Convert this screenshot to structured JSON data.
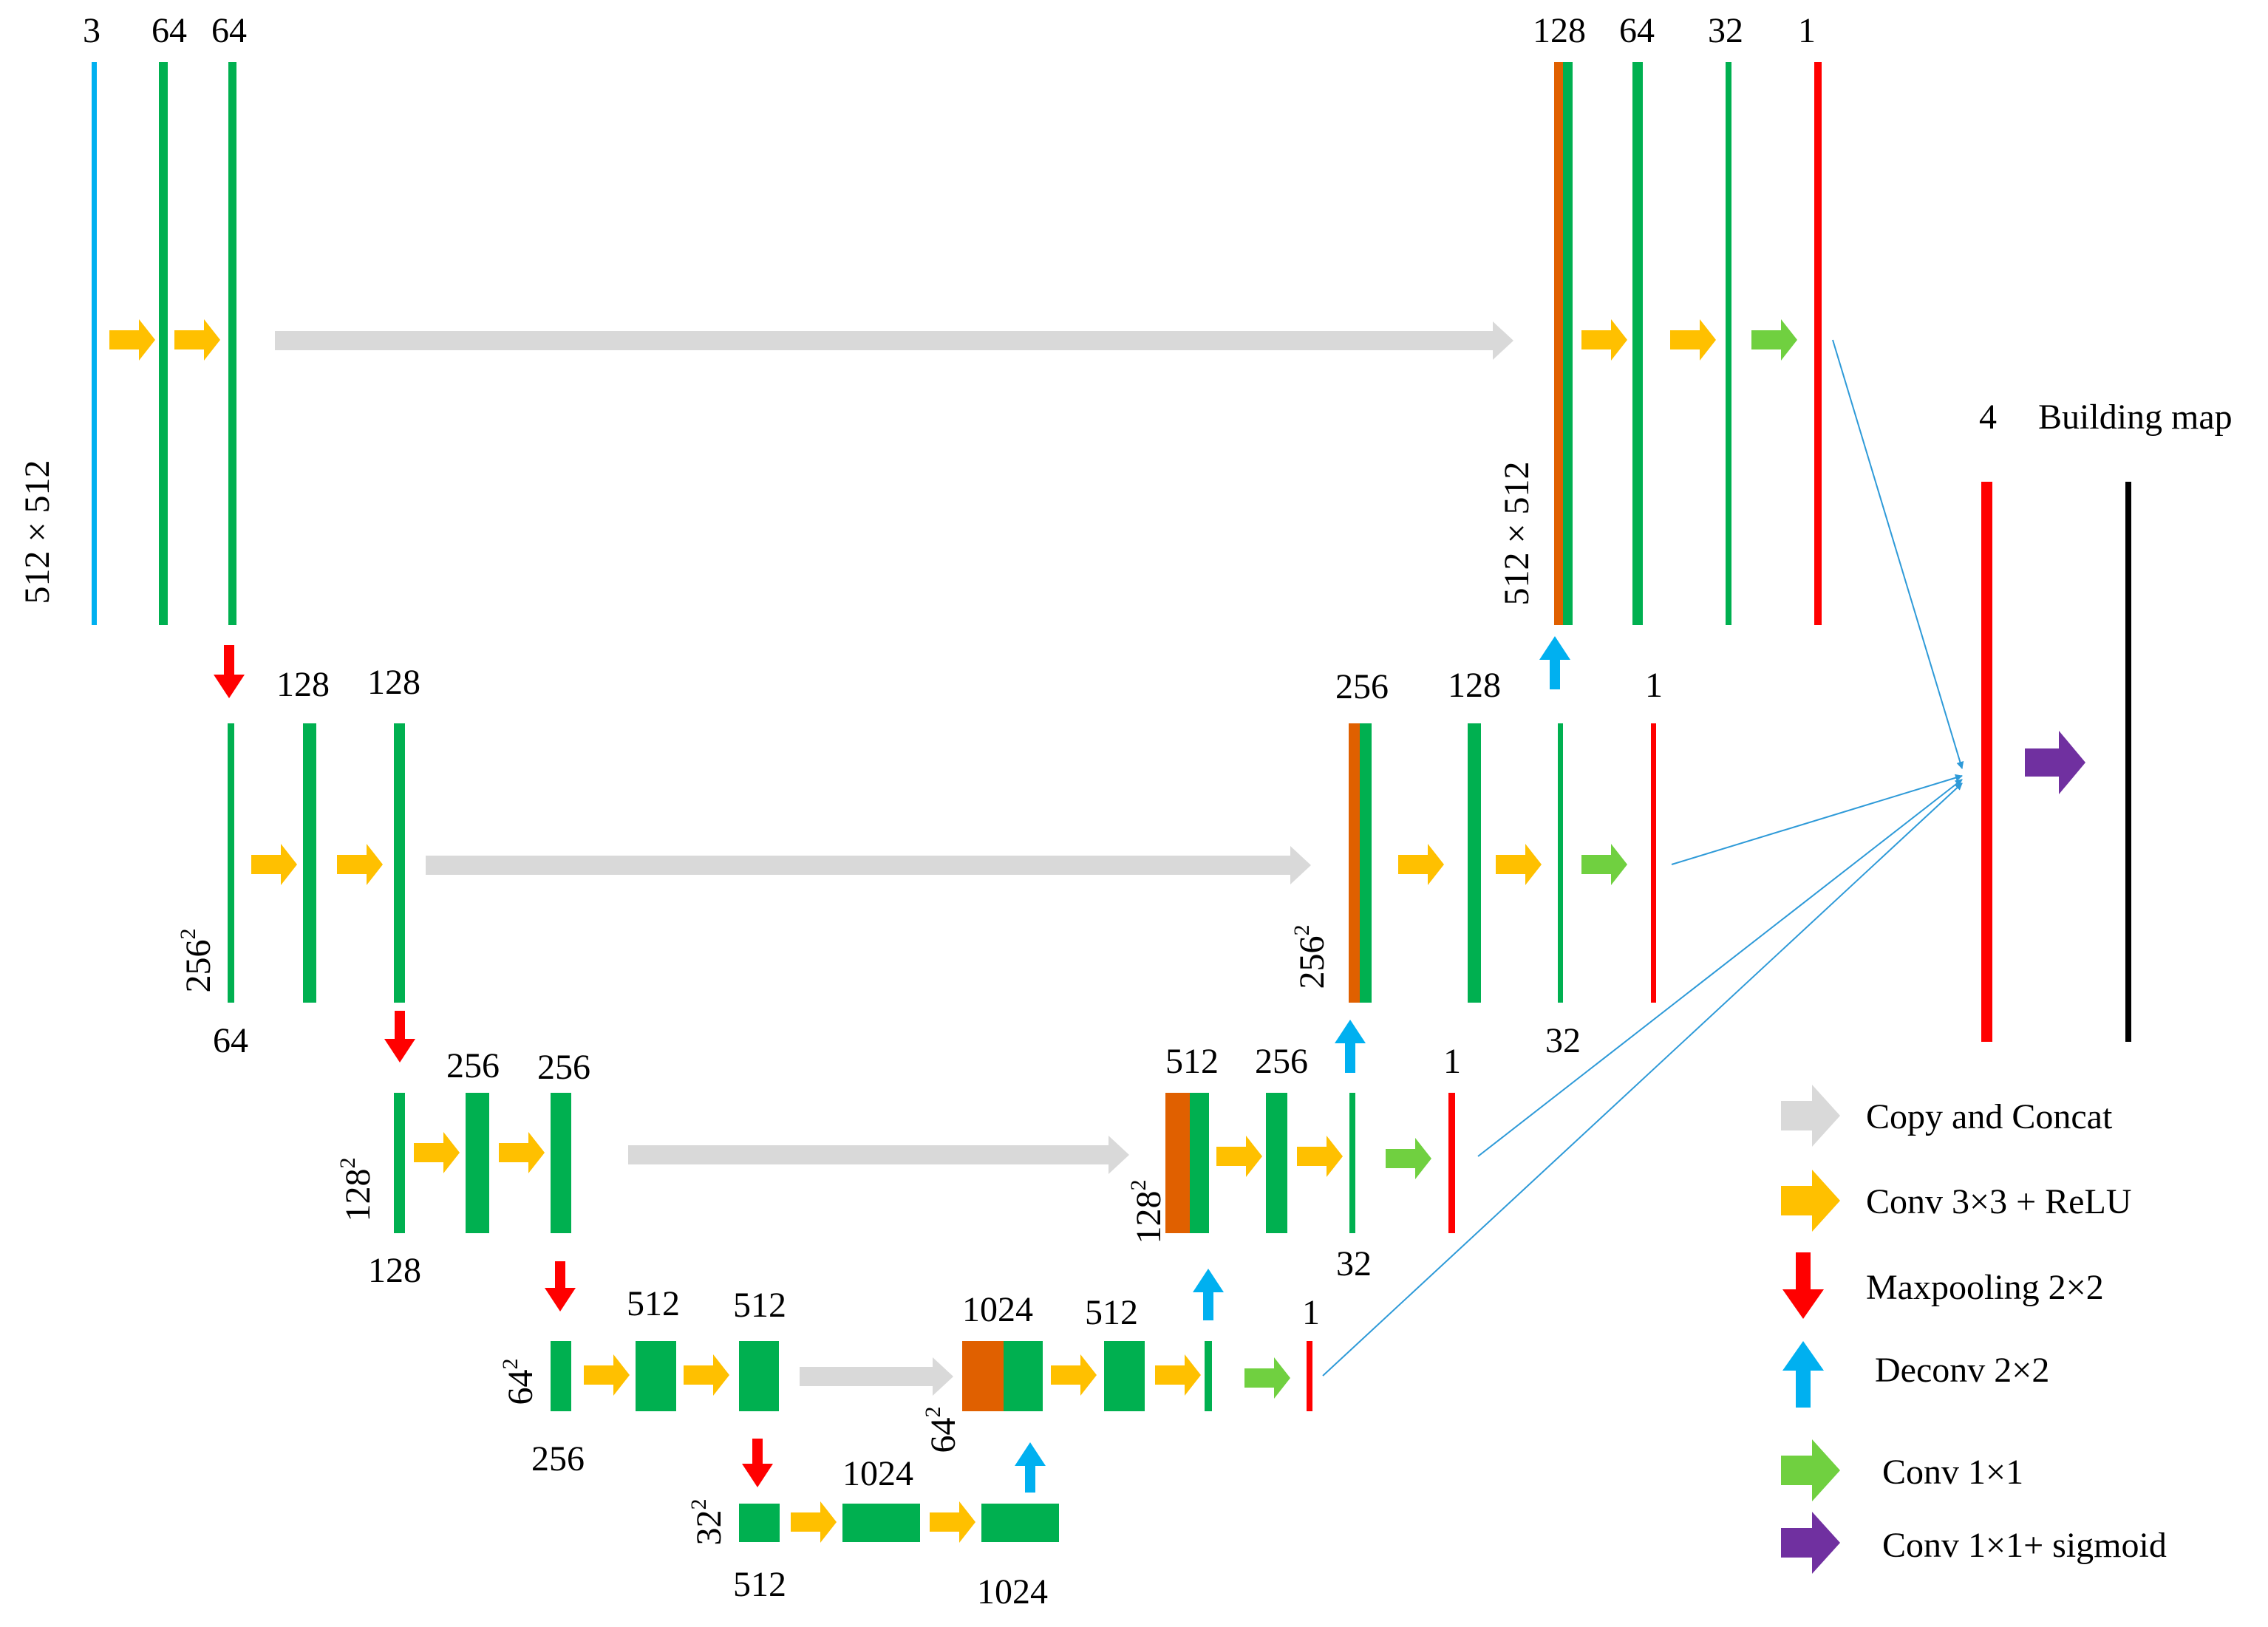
{
  "colors": {
    "feature_map": "#00B050",
    "input_map": "#00B0F0",
    "output_map": "#FF0000",
    "concat_map": "#E06000",
    "final_map": "#000000",
    "copy_arrow": "#D9D9D9",
    "conv_arrow": "#FFC000",
    "maxpool_arrow": "#FF0000",
    "deconv_arrow": "#00B0F0",
    "conv1x1_arrow": "#70D040",
    "sigmoid_arrow": "#7030A0",
    "fusion_line": "#2E9AD8"
  },
  "channel_labels": {
    "l1_input": "3",
    "l1_conv1": "64",
    "l1_conv2": "64",
    "l1_up": "128",
    "l1_up_conv1": "64",
    "l1_up_conv2": "32",
    "l1_out": "1",
    "l2_conv1": "128",
    "l2_conv2": "128",
    "l2_up": "256",
    "l2_up_conv1": "128",
    "l2_out": "1",
    "l2_pool_in": "64",
    "l2_up_conv2": "32",
    "l3_conv1": "256",
    "l3_conv2": "256",
    "l3_up": "512",
    "l3_up_conv1": "256",
    "l3_out": "1",
    "l3_pool_in": "128",
    "l3_up_conv2": "32",
    "l4_conv1": "512",
    "l4_conv2": "512",
    "l4_up": "1024",
    "l4_up_conv1": "512",
    "l4_out": "1",
    "l4_pool_in": "256",
    "l5_conv1": "1024",
    "l5_pool_in": "512",
    "l5_conv2": "1024",
    "fusion": "4"
  },
  "resolution_labels": {
    "l1_left": "512 × 512",
    "l1_right": "512 × 512",
    "l2_left_base": "256",
    "l2_right_base": "256",
    "l3_left_base": "128",
    "l3_right_base": "128",
    "l4_left_base": "64",
    "l4_right_base": "64",
    "l5_base": "32",
    "exponent": "2"
  },
  "output_title": "Building map",
  "legend": [
    {
      "label": "Copy and Concat",
      "icon": "copy-concat-arrow-icon"
    },
    {
      "label": "Conv 3×3 + ReLU",
      "icon": "conv-relu-arrow-icon"
    },
    {
      "label": "Maxpooling 2×2",
      "icon": "maxpool-down-arrow-icon"
    },
    {
      "label": "Deconv 2×2",
      "icon": "deconv-up-arrow-icon"
    },
    {
      "label": "Conv 1×1",
      "icon": "conv1x1-arrow-icon"
    },
    {
      "label": "Conv 1×1+ sigmoid",
      "icon": "sigmoid-arrow-icon"
    }
  ]
}
